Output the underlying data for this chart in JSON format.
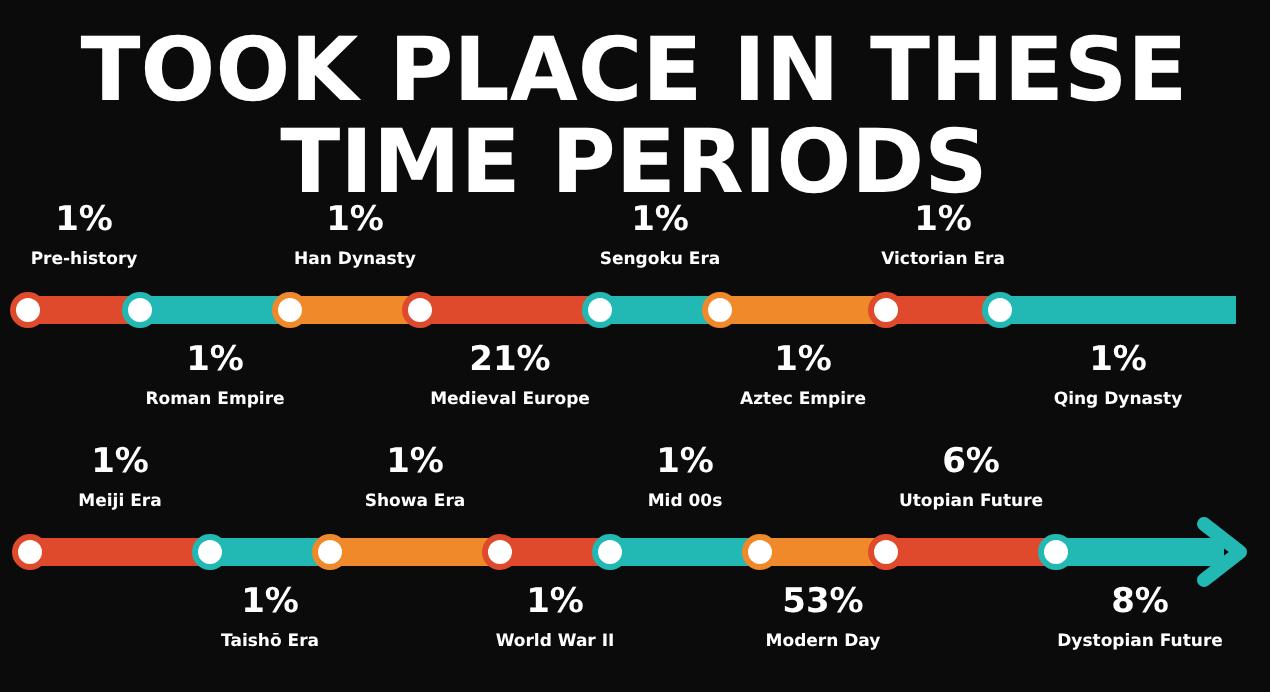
{
  "chart_data": {
    "type": "other",
    "title": "TOOK PLACE IN THESE TIME PERIODS",
    "categories": [
      "Pre-history",
      "Roman Empire",
      "Han Dynasty",
      "Medieval Europe",
      "Sengoku Era",
      "Aztec Empire",
      "Victorian Era",
      "Qing Dynasty",
      "Meiji Era",
      "Taishō Era",
      "Showa Era",
      "World War II",
      "Mid 00s",
      "Modern Day",
      "Utopian Future",
      "Dystopian Future"
    ],
    "values": [
      1,
      1,
      1,
      21,
      1,
      1,
      1,
      1,
      1,
      1,
      1,
      1,
      1,
      53,
      6,
      8
    ],
    "value_labels": [
      "1%",
      "1%",
      "1%",
      "21%",
      "1%",
      "1%",
      "1%",
      "1%",
      "1%",
      "1%",
      "1%",
      "1%",
      "1%",
      "53%",
      "6%",
      "8%"
    ],
    "colors": [
      "#e04a2c",
      "#22b8b3",
      "#f0892a",
      "#e04a2c",
      "#22b8b3",
      "#f0892a",
      "#e04a2c",
      "#22b8b3",
      "#e04a2c",
      "#22b8b3",
      "#f0892a",
      "#e04a2c",
      "#22b8b3",
      "#f0892a",
      "#e04a2c",
      "#22b8b3"
    ]
  }
}
